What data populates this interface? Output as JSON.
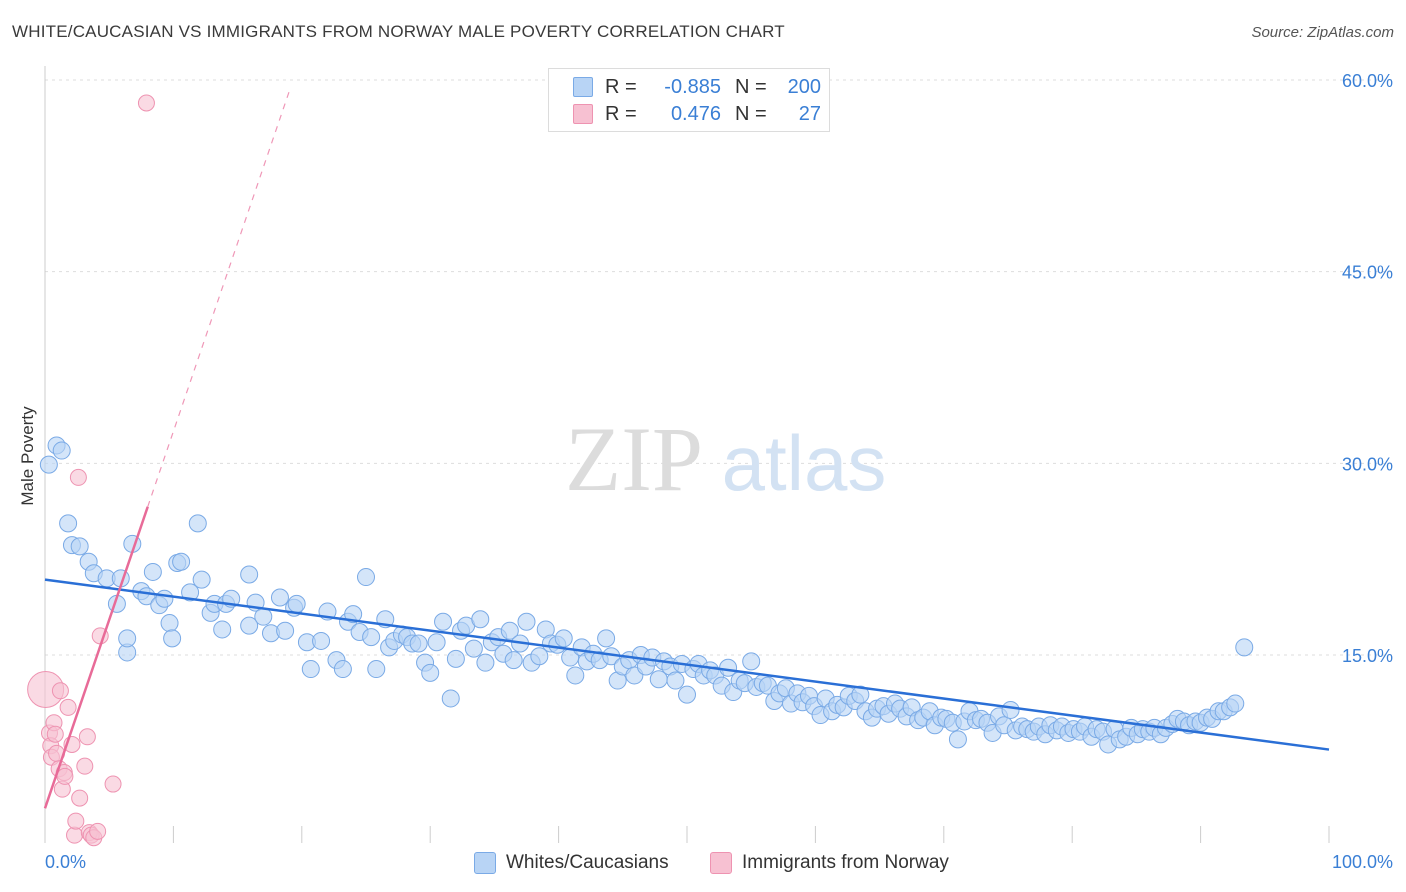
{
  "title": "WHITE/CAUCASIAN VS IMMIGRANTS FROM NORWAY MALE POVERTY CORRELATION CHART",
  "source": "Source: ZipAtlas.com",
  "watermark": {
    "zip": "ZIP",
    "atlas": "atlas"
  },
  "legend_top": {
    "rows": [
      {
        "r_label": "R =",
        "r_value": "-0.885",
        "n_label": "N =",
        "n_value": "200"
      },
      {
        "r_label": "R =",
        "r_value": "0.476",
        "n_label": "N =",
        "n_value": "27"
      }
    ]
  },
  "colors": {
    "blue_fill": "#b8d4f5",
    "blue_stroke": "#7aaae6",
    "blue_line": "#2a6fd6",
    "pink_fill": "#f7c1d2",
    "pink_stroke": "#ee93b1",
    "pink_line": "#e86b98",
    "grid": "#dddddd",
    "tick_label": "#3a7fd5"
  },
  "chart_data": {
    "type": "scatter",
    "title": "WHITE/CAUCASIAN VS IMMIGRANTS FROM NORWAY MALE POVERTY CORRELATION CHART",
    "xlabel": "",
    "ylabel": "Male Poverty",
    "xlim": [
      0,
      100
    ],
    "ylim": [
      0,
      62
    ],
    "y_ticks": [
      15,
      30,
      45,
      60
    ],
    "y_tick_labels": [
      "15.0%",
      "30.0%",
      "45.0%",
      "60.0%"
    ],
    "x_tick_labels": [
      "0.0%",
      "100.0%"
    ],
    "legend": [
      "Whites/Caucasians",
      "Immigrants from Norway"
    ],
    "series": [
      {
        "name": "Whites/Caucasians",
        "r": -0.885,
        "n": 200,
        "trend": {
          "x": [
            0,
            100
          ],
          "y": [
            20.9,
            7.6
          ],
          "style": "solid"
        },
        "points": [
          [
            0.3,
            29.9
          ],
          [
            0.9,
            31.4
          ],
          [
            1.3,
            31.0
          ],
          [
            1.8,
            25.3
          ],
          [
            2.1,
            23.6
          ],
          [
            2.7,
            23.5
          ],
          [
            3.4,
            22.3
          ],
          [
            3.8,
            21.4
          ],
          [
            4.8,
            21.0
          ],
          [
            5.6,
            19.0
          ],
          [
            5.9,
            21.0
          ],
          [
            6.4,
            15.2
          ],
          [
            6.4,
            16.3
          ],
          [
            6.8,
            23.7
          ],
          [
            7.5,
            20.0
          ],
          [
            7.9,
            19.6
          ],
          [
            8.4,
            21.5
          ],
          [
            8.9,
            18.9
          ],
          [
            9.3,
            19.4
          ],
          [
            9.7,
            17.5
          ],
          [
            9.9,
            16.3
          ],
          [
            10.3,
            22.2
          ],
          [
            10.6,
            22.3
          ],
          [
            11.3,
            19.9
          ],
          [
            11.9,
            25.3
          ],
          [
            12.2,
            20.9
          ],
          [
            12.9,
            18.3
          ],
          [
            13.2,
            19.0
          ],
          [
            13.8,
            17.0
          ],
          [
            14.1,
            19.0
          ],
          [
            14.5,
            19.4
          ],
          [
            15.9,
            21.3
          ],
          [
            15.9,
            17.3
          ],
          [
            16.4,
            19.1
          ],
          [
            17.0,
            18.0
          ],
          [
            17.6,
            16.7
          ],
          [
            18.3,
            19.5
          ],
          [
            18.7,
            16.9
          ],
          [
            19.4,
            18.7
          ],
          [
            19.6,
            19.0
          ],
          [
            20.4,
            16.0
          ],
          [
            20.7,
            13.9
          ],
          [
            21.5,
            16.1
          ],
          [
            22.0,
            18.4
          ],
          [
            22.7,
            14.6
          ],
          [
            23.2,
            13.9
          ],
          [
            23.6,
            17.6
          ],
          [
            24.0,
            18.2
          ],
          [
            24.5,
            16.8
          ],
          [
            25.0,
            21.1
          ],
          [
            25.4,
            16.4
          ],
          [
            25.8,
            13.9
          ],
          [
            26.5,
            17.8
          ],
          [
            26.8,
            15.6
          ],
          [
            27.2,
            16.1
          ],
          [
            27.8,
            16.6
          ],
          [
            28.2,
            16.4
          ],
          [
            28.6,
            15.9
          ],
          [
            29.1,
            15.9
          ],
          [
            29.6,
            14.4
          ],
          [
            30.0,
            13.6
          ],
          [
            30.5,
            16.0
          ],
          [
            31.0,
            17.6
          ],
          [
            31.6,
            11.6
          ],
          [
            32.0,
            14.7
          ],
          [
            32.4,
            16.9
          ],
          [
            32.8,
            17.3
          ],
          [
            33.4,
            15.5
          ],
          [
            33.9,
            17.8
          ],
          [
            34.3,
            14.4
          ],
          [
            34.8,
            16.0
          ],
          [
            35.3,
            16.4
          ],
          [
            35.7,
            15.1
          ],
          [
            36.2,
            16.9
          ],
          [
            36.5,
            14.6
          ],
          [
            37.0,
            15.9
          ],
          [
            37.5,
            17.6
          ],
          [
            37.9,
            14.4
          ],
          [
            38.5,
            14.9
          ],
          [
            39.0,
            17.0
          ],
          [
            39.4,
            15.9
          ],
          [
            39.9,
            15.8
          ],
          [
            40.4,
            16.3
          ],
          [
            40.9,
            14.8
          ],
          [
            41.3,
            13.4
          ],
          [
            41.8,
            15.6
          ],
          [
            42.2,
            14.5
          ],
          [
            42.7,
            15.1
          ],
          [
            43.2,
            14.6
          ],
          [
            43.7,
            16.3
          ],
          [
            44.1,
            14.9
          ],
          [
            44.6,
            13.0
          ],
          [
            45.0,
            14.1
          ],
          [
            45.5,
            14.6
          ],
          [
            45.9,
            13.4
          ],
          [
            46.4,
            15.0
          ],
          [
            46.8,
            14.1
          ],
          [
            47.3,
            14.8
          ],
          [
            47.8,
            13.1
          ],
          [
            48.2,
            14.5
          ],
          [
            48.7,
            14.1
          ],
          [
            49.1,
            13.0
          ],
          [
            49.6,
            14.3
          ],
          [
            50.0,
            11.9
          ],
          [
            50.5,
            13.9
          ],
          [
            50.9,
            14.3
          ],
          [
            51.3,
            13.4
          ],
          [
            51.8,
            13.8
          ],
          [
            52.2,
            13.4
          ],
          [
            52.7,
            12.6
          ],
          [
            53.2,
            14.0
          ],
          [
            53.6,
            12.1
          ],
          [
            54.1,
            13.0
          ],
          [
            54.5,
            12.8
          ],
          [
            55.0,
            14.5
          ],
          [
            55.4,
            12.5
          ],
          [
            55.9,
            12.8
          ],
          [
            56.3,
            12.6
          ],
          [
            56.8,
            11.4
          ],
          [
            57.2,
            12.0
          ],
          [
            57.7,
            12.4
          ],
          [
            58.1,
            11.2
          ],
          [
            58.6,
            12.0
          ],
          [
            59.0,
            11.3
          ],
          [
            59.5,
            11.8
          ],
          [
            59.9,
            11.0
          ],
          [
            60.4,
            10.3
          ],
          [
            60.8,
            11.6
          ],
          [
            61.3,
            10.6
          ],
          [
            61.7,
            11.1
          ],
          [
            62.2,
            10.9
          ],
          [
            62.6,
            11.8
          ],
          [
            63.1,
            11.4
          ],
          [
            63.5,
            11.9
          ],
          [
            63.9,
            10.6
          ],
          [
            64.4,
            10.1
          ],
          [
            64.8,
            10.8
          ],
          [
            65.3,
            11.0
          ],
          [
            65.7,
            10.4
          ],
          [
            66.2,
            11.2
          ],
          [
            66.6,
            10.8
          ],
          [
            67.1,
            10.2
          ],
          [
            67.5,
            10.9
          ],
          [
            68.0,
            9.9
          ],
          [
            68.4,
            10.1
          ],
          [
            68.9,
            10.6
          ],
          [
            69.3,
            9.5
          ],
          [
            69.8,
            10.1
          ],
          [
            70.2,
            10.0
          ],
          [
            70.7,
            9.7
          ],
          [
            71.1,
            8.4
          ],
          [
            71.6,
            9.8
          ],
          [
            72.0,
            10.6
          ],
          [
            72.5,
            9.9
          ],
          [
            72.9,
            10.0
          ],
          [
            73.4,
            9.7
          ],
          [
            73.8,
            8.9
          ],
          [
            74.3,
            10.2
          ],
          [
            74.7,
            9.5
          ],
          [
            75.2,
            10.7
          ],
          [
            75.6,
            9.1
          ],
          [
            76.1,
            9.4
          ],
          [
            76.5,
            9.2
          ],
          [
            77.0,
            9.0
          ],
          [
            77.4,
            9.4
          ],
          [
            77.9,
            8.8
          ],
          [
            78.3,
            9.5
          ],
          [
            78.8,
            9.1
          ],
          [
            79.2,
            9.4
          ],
          [
            79.7,
            8.9
          ],
          [
            80.1,
            9.2
          ],
          [
            80.6,
            9.0
          ],
          [
            81.0,
            9.4
          ],
          [
            81.5,
            8.6
          ],
          [
            81.9,
            9.2
          ],
          [
            82.4,
            9.0
          ],
          [
            82.8,
            8.0
          ],
          [
            83.3,
            9.2
          ],
          [
            83.7,
            8.4
          ],
          [
            84.2,
            8.6
          ],
          [
            84.6,
            9.3
          ],
          [
            85.1,
            8.8
          ],
          [
            85.5,
            9.2
          ],
          [
            86.0,
            9.0
          ],
          [
            86.4,
            9.3
          ],
          [
            86.9,
            8.8
          ],
          [
            87.3,
            9.3
          ],
          [
            87.8,
            9.6
          ],
          [
            88.2,
            10.0
          ],
          [
            88.7,
            9.8
          ],
          [
            89.1,
            9.5
          ],
          [
            89.6,
            9.8
          ],
          [
            90.0,
            9.7
          ],
          [
            90.5,
            10.1
          ],
          [
            90.9,
            10.0
          ],
          [
            91.4,
            10.6
          ],
          [
            91.8,
            10.6
          ],
          [
            92.3,
            10.9
          ],
          [
            92.7,
            11.2
          ],
          [
            93.4,
            15.6
          ]
        ]
      },
      {
        "name": "Immigrants from Norway",
        "r": 0.476,
        "n": 27,
        "trend": {
          "x": [
            0,
            8.0
          ],
          "y": [
            3.0,
            26.6
          ],
          "style": "solid",
          "extended_x": [
            0,
            19.1
          ],
          "extended_style": "dashed"
        },
        "points": [
          [
            0.05,
            12.3
          ],
          [
            0.35,
            8.9
          ],
          [
            0.45,
            7.9
          ],
          [
            0.5,
            7.0
          ],
          [
            0.7,
            9.7
          ],
          [
            0.8,
            8.8
          ],
          [
            0.9,
            7.3
          ],
          [
            1.1,
            6.1
          ],
          [
            1.2,
            12.2
          ],
          [
            1.35,
            4.5
          ],
          [
            1.5,
            5.8
          ],
          [
            1.55,
            5.5
          ],
          [
            1.8,
            10.9
          ],
          [
            2.1,
            8.0
          ],
          [
            2.3,
            0.9
          ],
          [
            2.4,
            2.0
          ],
          [
            2.7,
            3.8
          ],
          [
            3.1,
            6.3
          ],
          [
            3.3,
            8.6
          ],
          [
            3.45,
            1.1
          ],
          [
            3.6,
            0.9
          ],
          [
            3.8,
            0.7
          ],
          [
            4.1,
            1.2
          ],
          [
            4.3,
            16.5
          ],
          [
            5.3,
            4.9
          ],
          [
            7.9,
            58.2
          ],
          [
            2.6,
            28.9
          ]
        ]
      }
    ]
  },
  "bottom_legend": {
    "items": [
      "Whites/Caucasians",
      "Immigrants from Norway"
    ]
  }
}
